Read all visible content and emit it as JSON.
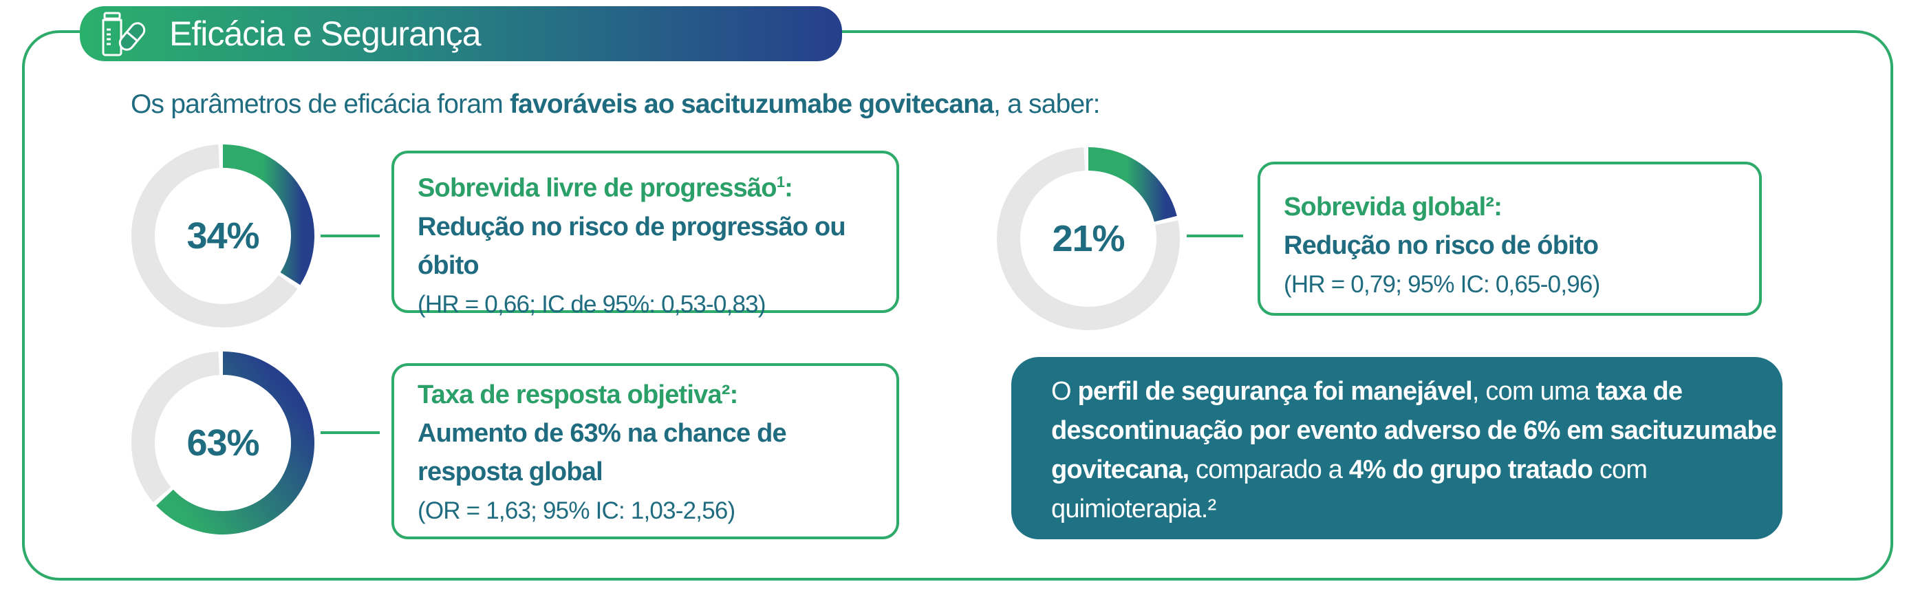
{
  "header": {
    "title": "Eficácia e Segurança",
    "icon": "medicine-bottle-pill-icon"
  },
  "intro": {
    "prefix": "Os parâmetros de eficácia foram ",
    "bold": "favoráveis ao sacituzumabe govitecana",
    "suffix": ", a saber:"
  },
  "colors": {
    "green": "#2eaa6a",
    "teal": "#1f6b7f",
    "navy": "#263f8c",
    "ring_bg": "#e6e6e6",
    "safety_bg": "#1f7284"
  },
  "metrics": [
    {
      "percent_label": "34%",
      "value": 34,
      "title": "Sobrevida livre de progressão",
      "title_sup": "1",
      "title_end": ":",
      "subtitle": "Redução no risco de progressão ou óbito",
      "stats": "(HR = 0,66; IC de 95%: 0,53-0,83)"
    },
    {
      "percent_label": "63%",
      "value": 63,
      "title": "Taxa de resposta objetiva²",
      "title_sup": "",
      "title_end": ":",
      "subtitle": "Aumento de 63% na chance de resposta global",
      "stats": "(OR = 1,63; 95% IC: 1,03-2,56)"
    },
    {
      "percent_label": "21%",
      "value": 21,
      "title": "Sobrevida global²",
      "title_sup": "",
      "title_end": ":",
      "subtitle": "Redução no risco de óbito",
      "stats": "(HR = 0,79; 95% IC: 0,65-0,96)"
    }
  ],
  "safety": {
    "p1": "O ",
    "b1": "perfil de segurança foi manejável",
    "p2": ", com uma ",
    "b2": "taxa de descontinuação por evento adverso de 6% em sacituzumabe govitecana,",
    "p3": " comparado a ",
    "b3": "4% do grupo tratado",
    "p4": " com quimioterapia.²"
  }
}
